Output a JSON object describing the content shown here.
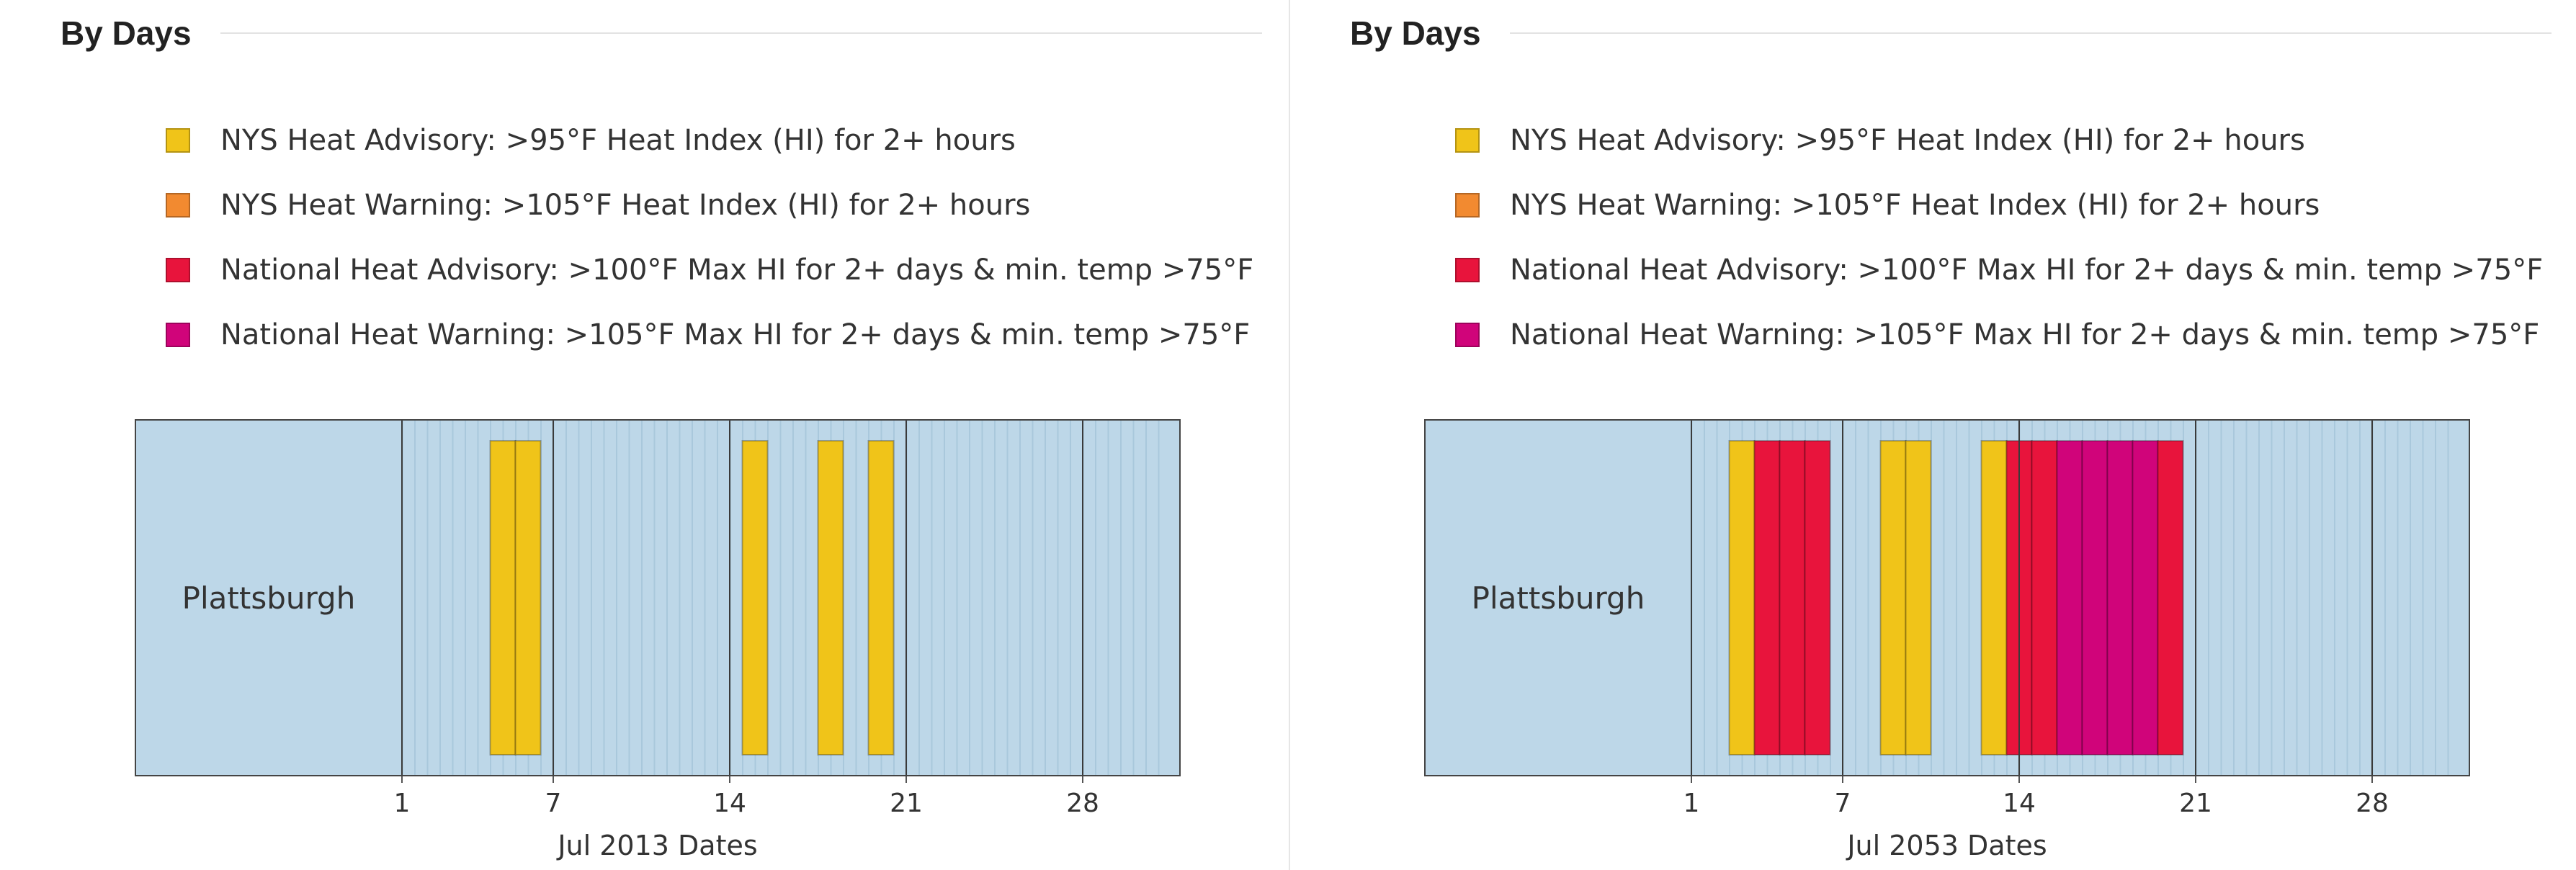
{
  "colors": {
    "background_band": "#bdd7e8",
    "day_line": "#a9c8dc",
    "week_line": "#3a3a3a",
    "nys_heat_advisory": "#f0c419",
    "nys_heat_warning": "#f28a30",
    "national_heat_advisory": "#e8143c",
    "national_heat_warning": "#d0047a"
  },
  "panels": [
    {
      "title": "By Days",
      "legend": [
        {
          "label": "NYS Heat Advisory: >95°F Heat Index (HI) for 2+ hours",
          "color": "#f0c419"
        },
        {
          "label": "NYS Heat Warning: >105°F Heat Index (HI) for 2+ hours",
          "color": "#f28a30"
        },
        {
          "label": "National Heat Advisory: >100°F Max HI for 2+ days & min. temp >75°F",
          "color": "#e8143c"
        },
        {
          "label": "National Heat Warning: >105°F Max HI for 2+ days & min. temp >75°F",
          "color": "#d0047a"
        }
      ]
    },
    {
      "title": "By Days",
      "legend": [
        {
          "label": "NYS Heat Advisory: >95°F Heat Index (HI) for 2+ hours",
          "color": "#f0c419"
        },
        {
          "label": "NYS Heat Warning: >105°F Heat Index (HI) for 2+ hours",
          "color": "#f28a30"
        },
        {
          "label": "National Heat Advisory: >100°F Max HI for 2+ days & min. temp >75°F",
          "color": "#e8143c"
        },
        {
          "label": "National Heat Warning: >105°F Max HI for 2+ days & min. temp >75°F",
          "color": "#d0047a"
        }
      ]
    }
  ],
  "chart_data": [
    {
      "type": "bar",
      "category": "Plattsburgh",
      "xlabel": "Jul 2013 Dates",
      "xlim": [
        1,
        31
      ],
      "ticks": [
        1,
        7,
        14,
        21,
        28
      ],
      "grid": true,
      "events": [
        {
          "day": 4.5,
          "level": "nys_heat_advisory"
        },
        {
          "day": 5.5,
          "level": "nys_heat_advisory"
        },
        {
          "day": 14.5,
          "level": "nys_heat_advisory"
        },
        {
          "day": 17.5,
          "level": "nys_heat_advisory"
        },
        {
          "day": 19.5,
          "level": "nys_heat_advisory"
        }
      ]
    },
    {
      "type": "bar",
      "category": "Plattsburgh",
      "xlabel": "Jul 2053 Dates",
      "xlim": [
        1,
        31
      ],
      "ticks": [
        1,
        7,
        14,
        21,
        28
      ],
      "grid": true,
      "events": [
        {
          "day": 2.5,
          "level": "nys_heat_advisory"
        },
        {
          "day": 3.5,
          "level": "national_heat_advisory"
        },
        {
          "day": 4.5,
          "level": "national_heat_advisory"
        },
        {
          "day": 5.5,
          "level": "national_heat_advisory"
        },
        {
          "day": 8.5,
          "level": "nys_heat_advisory"
        },
        {
          "day": 9.5,
          "level": "nys_heat_advisory"
        },
        {
          "day": 12.5,
          "level": "nys_heat_advisory"
        },
        {
          "day": 13.5,
          "level": "national_heat_advisory"
        },
        {
          "day": 14.5,
          "level": "national_heat_advisory"
        },
        {
          "day": 15.5,
          "level": "national_heat_warning"
        },
        {
          "day": 16.5,
          "level": "national_heat_warning"
        },
        {
          "day": 17.5,
          "level": "national_heat_warning"
        },
        {
          "day": 18.5,
          "level": "national_heat_warning"
        },
        {
          "day": 19.5,
          "level": "national_heat_advisory"
        }
      ]
    }
  ]
}
